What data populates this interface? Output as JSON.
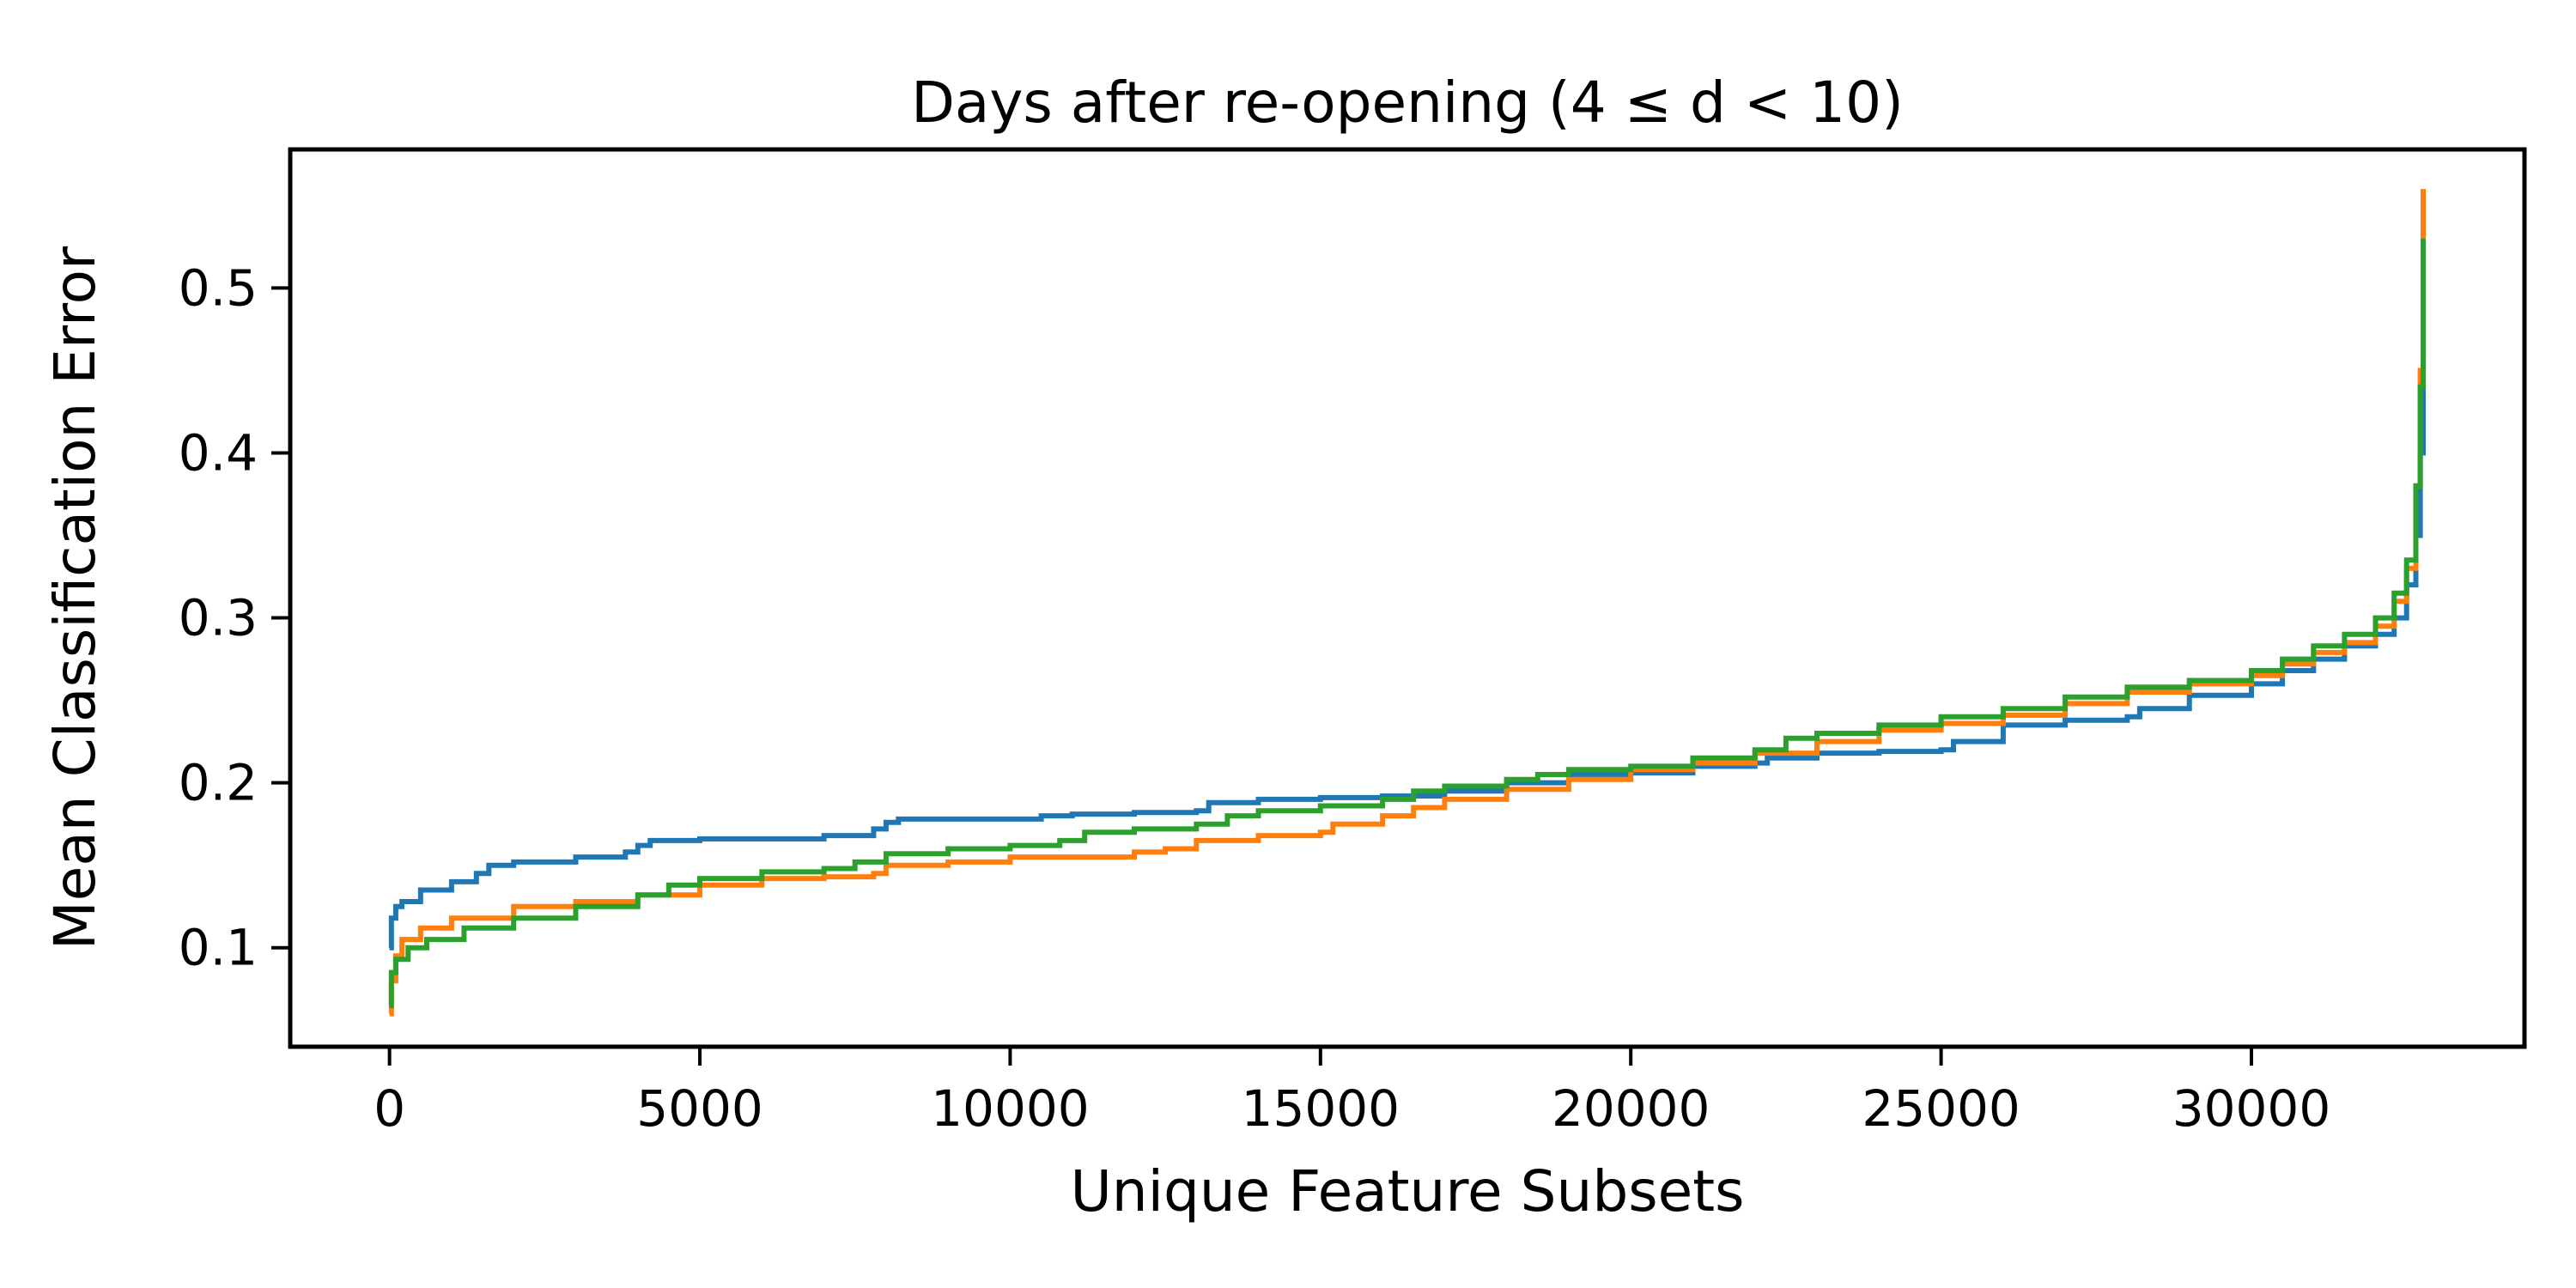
{
  "chart_data": {
    "type": "line",
    "title": "Days after re-opening (4 ≤ d < 10)",
    "xlabel": "Unique Feature Subsets",
    "ylabel": "Mean Classification Error",
    "xlim": [
      -1600,
      34400
    ],
    "ylim": [
      0.04,
      0.584
    ],
    "x_ticks": [
      0,
      5000,
      10000,
      15000,
      20000,
      25000,
      30000
    ],
    "x_tick_labels": [
      "0",
      "5000",
      "10000",
      "15000",
      "20000",
      "25000",
      "30000"
    ],
    "y_ticks": [
      0.1,
      0.2,
      0.3,
      0.4,
      0.5
    ],
    "y_tick_labels": [
      "0.1",
      "0.2",
      "0.3",
      "0.4",
      "0.5"
    ],
    "grid": false,
    "legend": "none",
    "series": [
      {
        "color": "#1f77b4",
        "x": [
          0,
          30,
          100,
          200,
          500,
          1000,
          1400,
          1600,
          2000,
          3000,
          3800,
          4000,
          4200,
          5000,
          6000,
          7000,
          7800,
          8000,
          8200,
          9000,
          10000,
          10500,
          11000,
          12000,
          13000,
          13200,
          14000,
          15000,
          16000,
          17000,
          18000,
          19000,
          20000,
          21000,
          22000,
          22200,
          23000,
          24000,
          25000,
          25200,
          26000,
          27000,
          28000,
          28200,
          29000,
          30000,
          30500,
          31000,
          31500,
          32000,
          32300,
          32500,
          32650,
          32720,
          32768
        ],
        "y": [
          0.1,
          0.118,
          0.125,
          0.128,
          0.135,
          0.14,
          0.145,
          0.15,
          0.152,
          0.155,
          0.158,
          0.162,
          0.165,
          0.166,
          0.166,
          0.168,
          0.172,
          0.176,
          0.178,
          0.178,
          0.178,
          0.18,
          0.181,
          0.182,
          0.183,
          0.188,
          0.19,
          0.191,
          0.192,
          0.195,
          0.2,
          0.205,
          0.206,
          0.21,
          0.212,
          0.215,
          0.218,
          0.219,
          0.22,
          0.225,
          0.235,
          0.238,
          0.24,
          0.245,
          0.253,
          0.26,
          0.268,
          0.275,
          0.283,
          0.29,
          0.3,
          0.32,
          0.35,
          0.4,
          0.5
        ]
      },
      {
        "color": "#ff7f0e",
        "x": [
          0,
          30,
          100,
          200,
          500,
          1000,
          2000,
          3000,
          4000,
          5000,
          6000,
          7000,
          7800,
          8000,
          9000,
          10000,
          11000,
          12000,
          12500,
          13000,
          14000,
          15000,
          15200,
          16000,
          16500,
          17000,
          18000,
          19000,
          20000,
          21000,
          22000,
          23000,
          24000,
          25000,
          26000,
          27000,
          28000,
          29000,
          30000,
          30500,
          31000,
          31500,
          32000,
          32300,
          32500,
          32650,
          32720,
          32768
        ],
        "y": [
          0.06,
          0.08,
          0.095,
          0.105,
          0.112,
          0.118,
          0.125,
          0.128,
          0.132,
          0.138,
          0.142,
          0.143,
          0.145,
          0.15,
          0.152,
          0.155,
          0.155,
          0.158,
          0.16,
          0.165,
          0.168,
          0.17,
          0.175,
          0.18,
          0.185,
          0.19,
          0.196,
          0.202,
          0.208,
          0.212,
          0.218,
          0.225,
          0.232,
          0.236,
          0.241,
          0.248,
          0.255,
          0.26,
          0.265,
          0.272,
          0.279,
          0.285,
          0.295,
          0.31,
          0.33,
          0.38,
          0.45,
          0.56
        ]
      },
      {
        "color": "#2ca02c",
        "x": [
          0,
          30,
          100,
          300,
          600,
          1200,
          2000,
          3000,
          4000,
          4500,
          5000,
          6000,
          7000,
          7500,
          8000,
          9000,
          10000,
          10800,
          11200,
          12000,
          13000,
          13500,
          14000,
          15000,
          16000,
          16500,
          17000,
          18000,
          18500,
          19000,
          20000,
          21000,
          22000,
          22500,
          23000,
          24000,
          25000,
          26000,
          27000,
          28000,
          29000,
          30000,
          30500,
          31000,
          31500,
          32000,
          32300,
          32500,
          32650,
          32720,
          32768
        ],
        "y": [
          0.065,
          0.085,
          0.093,
          0.1,
          0.105,
          0.112,
          0.118,
          0.125,
          0.132,
          0.138,
          0.142,
          0.146,
          0.148,
          0.152,
          0.157,
          0.16,
          0.162,
          0.165,
          0.17,
          0.172,
          0.175,
          0.18,
          0.183,
          0.186,
          0.19,
          0.195,
          0.198,
          0.202,
          0.205,
          0.208,
          0.21,
          0.215,
          0.22,
          0.227,
          0.23,
          0.235,
          0.24,
          0.245,
          0.252,
          0.258,
          0.262,
          0.268,
          0.275,
          0.283,
          0.29,
          0.3,
          0.315,
          0.335,
          0.38,
          0.44,
          0.53
        ]
      }
    ]
  }
}
